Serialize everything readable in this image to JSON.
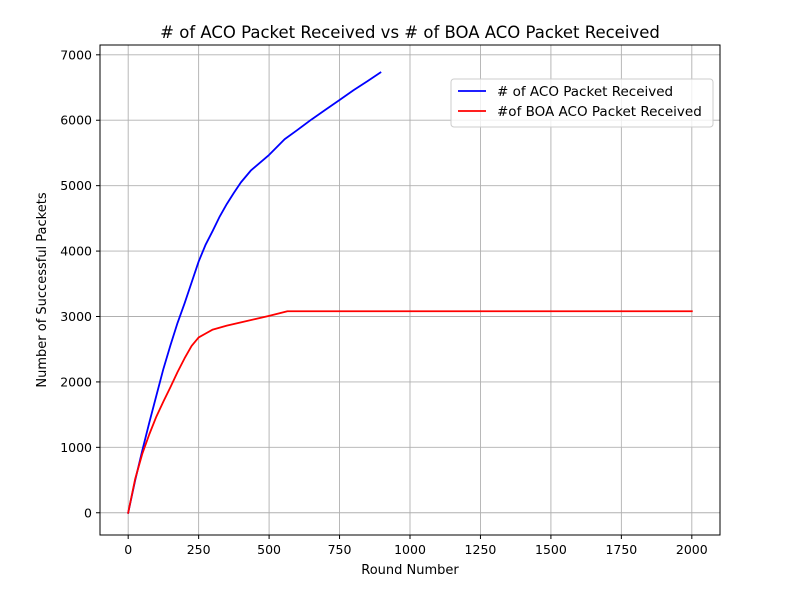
{
  "chart_data": {
    "type": "line",
    "title": "# of ACO Packet Received vs # of BOA ACO Packet Received",
    "xlabel": "Round Number",
    "ylabel": "Number of Successful Packets",
    "xlim": [
      -100,
      2100
    ],
    "ylim": [
      -340,
      7150
    ],
    "xticks": [
      0,
      250,
      500,
      750,
      1000,
      1250,
      1500,
      1750,
      2000
    ],
    "yticks": [
      0,
      1000,
      2000,
      3000,
      4000,
      5000,
      6000,
      7000
    ],
    "grid": true,
    "legend_position": "top-right",
    "series": [
      {
        "name": "# of ACO Packet Received",
        "color": "#0000ff",
        "x": [
          0,
          25,
          50,
          75,
          100,
          125,
          150,
          175,
          200,
          225,
          250,
          275,
          300,
          325,
          350,
          375,
          400,
          435,
          500,
          555,
          600,
          650,
          700,
          750,
          800,
          850,
          895
        ],
        "y": [
          0,
          500,
          950,
          1380,
          1790,
          2200,
          2560,
          2900,
          3200,
          3520,
          3840,
          4100,
          4310,
          4530,
          4720,
          4890,
          5050,
          5230,
          5470,
          5710,
          5850,
          6010,
          6160,
          6310,
          6460,
          6600,
          6730
        ]
      },
      {
        "name": "#of BOA ACO Packet Received",
        "color": "#ff0000",
        "x": [
          0,
          25,
          50,
          75,
          100,
          125,
          150,
          175,
          200,
          225,
          250,
          275,
          300,
          350,
          400,
          450,
          500,
          565,
          600,
          800,
          1000,
          1250,
          1500,
          1750,
          2000
        ],
        "y": [
          0,
          520,
          900,
          1200,
          1470,
          1700,
          1920,
          2150,
          2360,
          2550,
          2680,
          2740,
          2800,
          2860,
          2910,
          2960,
          3010,
          3080,
          3080,
          3080,
          3080,
          3080,
          3080,
          3080,
          3080
        ]
      }
    ]
  }
}
